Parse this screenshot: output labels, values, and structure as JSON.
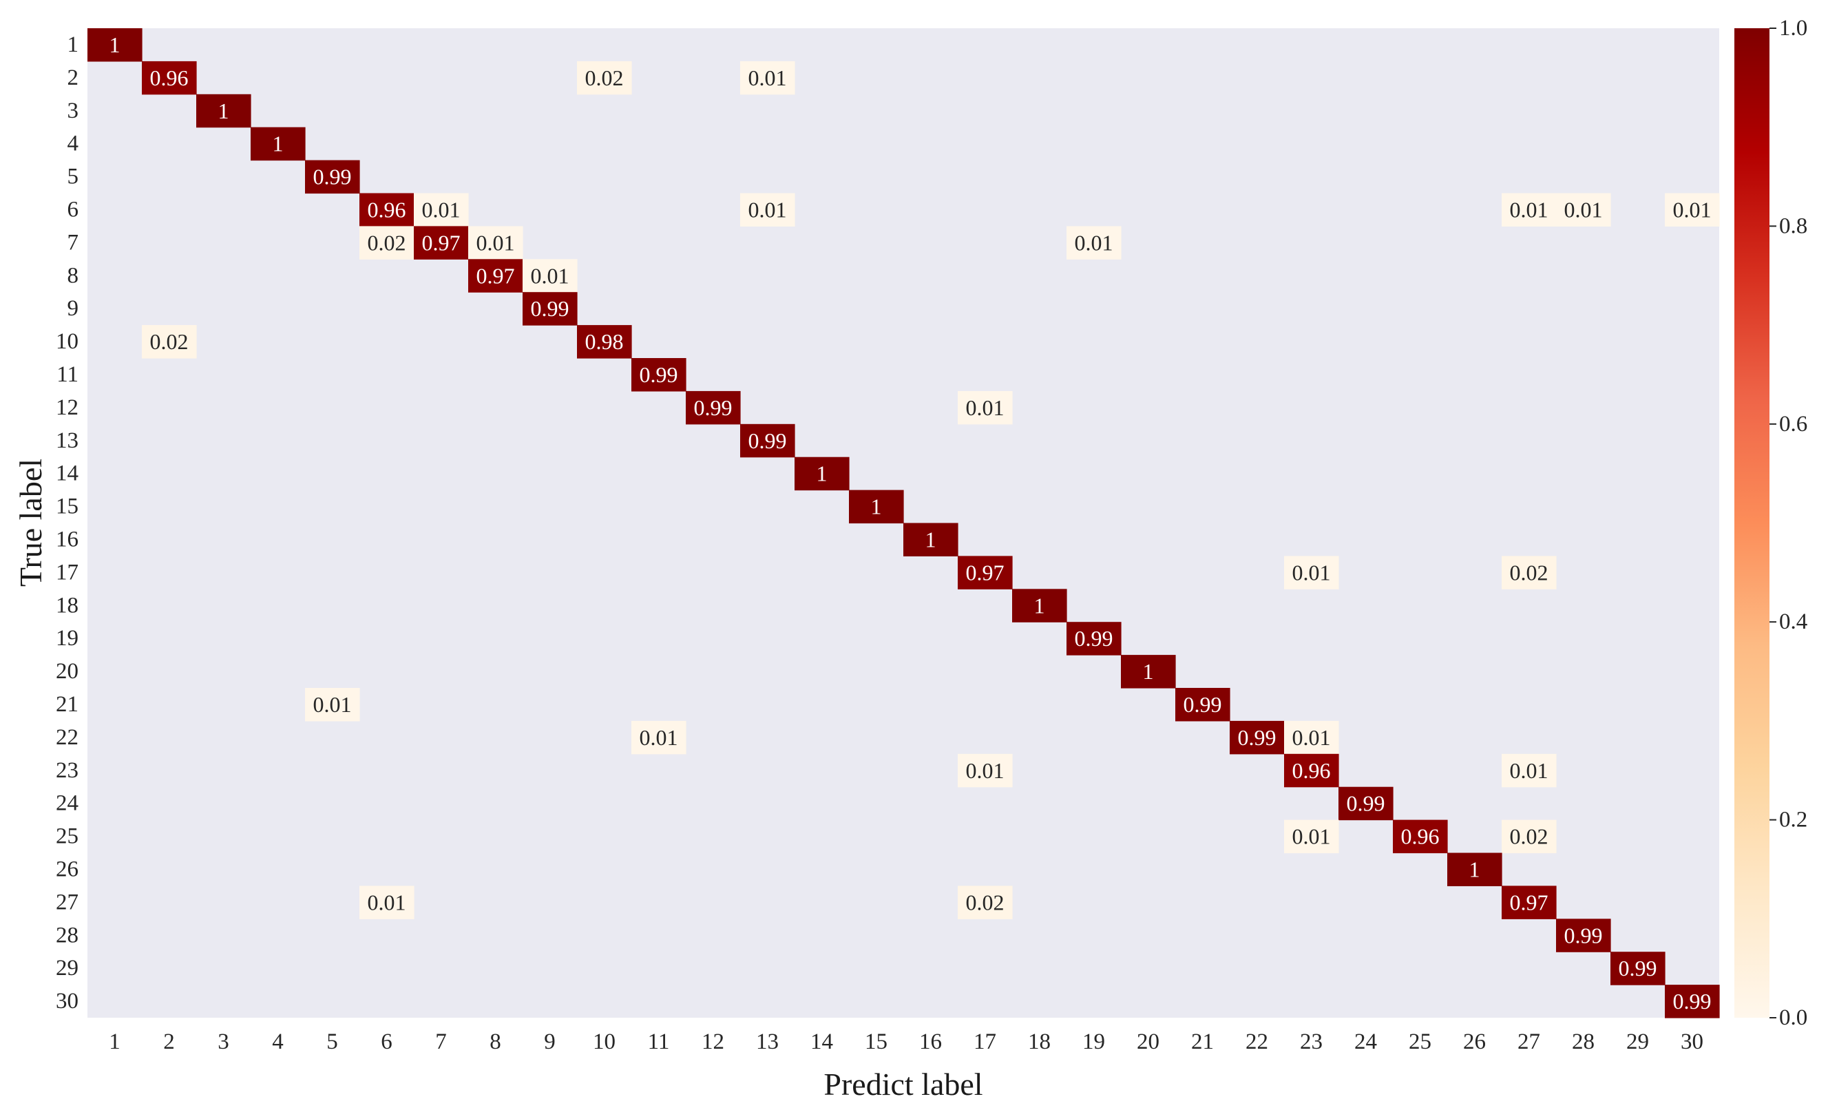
{
  "chart_data": {
    "type": "heatmap",
    "title": "",
    "xlabel": "Predict label",
    "ylabel": "True label",
    "x_categories": [
      "1",
      "2",
      "3",
      "4",
      "5",
      "6",
      "7",
      "8",
      "9",
      "10",
      "11",
      "12",
      "13",
      "14",
      "15",
      "16",
      "17",
      "18",
      "19",
      "20",
      "21",
      "22",
      "23",
      "24",
      "25",
      "26",
      "27",
      "28",
      "29",
      "30"
    ],
    "y_categories": [
      "1",
      "2",
      "3",
      "4",
      "5",
      "6",
      "7",
      "8",
      "9",
      "10",
      "11",
      "12",
      "13",
      "14",
      "15",
      "16",
      "17",
      "18",
      "19",
      "20",
      "21",
      "22",
      "23",
      "24",
      "25",
      "26",
      "27",
      "28",
      "29",
      "30"
    ],
    "cells": [
      {
        "row": 1,
        "col": 1,
        "value": 1,
        "label": "1"
      },
      {
        "row": 2,
        "col": 2,
        "value": 0.96,
        "label": "0.96"
      },
      {
        "row": 2,
        "col": 10,
        "value": 0.02,
        "label": "0.02"
      },
      {
        "row": 2,
        "col": 13,
        "value": 0.01,
        "label": "0.01"
      },
      {
        "row": 3,
        "col": 3,
        "value": 1,
        "label": "1"
      },
      {
        "row": 4,
        "col": 4,
        "value": 1,
        "label": "1"
      },
      {
        "row": 5,
        "col": 5,
        "value": 0.99,
        "label": "0.99"
      },
      {
        "row": 6,
        "col": 6,
        "value": 0.96,
        "label": "0.96"
      },
      {
        "row": 6,
        "col": 7,
        "value": 0.01,
        "label": "0.01"
      },
      {
        "row": 6,
        "col": 13,
        "value": 0.01,
        "label": "0.01"
      },
      {
        "row": 6,
        "col": 27,
        "value": 0.01,
        "label": "0.01"
      },
      {
        "row": 6,
        "col": 28,
        "value": 0.01,
        "label": "0.01"
      },
      {
        "row": 6,
        "col": 30,
        "value": 0.01,
        "label": "0.01"
      },
      {
        "row": 7,
        "col": 6,
        "value": 0.02,
        "label": "0.02"
      },
      {
        "row": 7,
        "col": 7,
        "value": 0.97,
        "label": "0.97"
      },
      {
        "row": 7,
        "col": 8,
        "value": 0.01,
        "label": "0.01"
      },
      {
        "row": 7,
        "col": 19,
        "value": 0.01,
        "label": "0.01"
      },
      {
        "row": 8,
        "col": 8,
        "value": 0.97,
        "label": "0.97"
      },
      {
        "row": 8,
        "col": 9,
        "value": 0.01,
        "label": "0.01"
      },
      {
        "row": 9,
        "col": 9,
        "value": 0.99,
        "label": "0.99"
      },
      {
        "row": 10,
        "col": 2,
        "value": 0.02,
        "label": "0.02"
      },
      {
        "row": 10,
        "col": 10,
        "value": 0.98,
        "label": "0.98"
      },
      {
        "row": 11,
        "col": 11,
        "value": 0.99,
        "label": "0.99"
      },
      {
        "row": 12,
        "col": 12,
        "value": 0.99,
        "label": "0.99"
      },
      {
        "row": 12,
        "col": 17,
        "value": 0.01,
        "label": "0.01"
      },
      {
        "row": 13,
        "col": 13,
        "value": 0.99,
        "label": "0.99"
      },
      {
        "row": 14,
        "col": 14,
        "value": 1,
        "label": "1"
      },
      {
        "row": 15,
        "col": 15,
        "value": 1,
        "label": "1"
      },
      {
        "row": 16,
        "col": 16,
        "value": 1,
        "label": "1"
      },
      {
        "row": 17,
        "col": 17,
        "value": 0.97,
        "label": "0.97"
      },
      {
        "row": 17,
        "col": 23,
        "value": 0.01,
        "label": "0.01"
      },
      {
        "row": 17,
        "col": 27,
        "value": 0.02,
        "label": "0.02"
      },
      {
        "row": 18,
        "col": 18,
        "value": 1,
        "label": "1"
      },
      {
        "row": 19,
        "col": 19,
        "value": 0.99,
        "label": "0.99"
      },
      {
        "row": 20,
        "col": 20,
        "value": 1,
        "label": "1"
      },
      {
        "row": 21,
        "col": 5,
        "value": 0.01,
        "label": "0.01"
      },
      {
        "row": 21,
        "col": 21,
        "value": 0.99,
        "label": "0.99"
      },
      {
        "row": 22,
        "col": 11,
        "value": 0.01,
        "label": "0.01"
      },
      {
        "row": 22,
        "col": 22,
        "value": 0.99,
        "label": "0.99"
      },
      {
        "row": 22,
        "col": 23,
        "value": 0.01,
        "label": "0.01"
      },
      {
        "row": 23,
        "col": 17,
        "value": 0.01,
        "label": "0.01"
      },
      {
        "row": 23,
        "col": 23,
        "value": 0.96,
        "label": "0.96"
      },
      {
        "row": 23,
        "col": 27,
        "value": 0.01,
        "label": "0.01"
      },
      {
        "row": 24,
        "col": 24,
        "value": 0.99,
        "label": "0.99"
      },
      {
        "row": 25,
        "col": 23,
        "value": 0.01,
        "label": "0.01"
      },
      {
        "row": 25,
        "col": 25,
        "value": 0.96,
        "label": "0.96"
      },
      {
        "row": 25,
        "col": 27,
        "value": 0.02,
        "label": "0.02"
      },
      {
        "row": 26,
        "col": 26,
        "value": 1,
        "label": "1"
      },
      {
        "row": 27,
        "col": 6,
        "value": 0.01,
        "label": "0.01"
      },
      {
        "row": 27,
        "col": 17,
        "value": 0.02,
        "label": "0.02"
      },
      {
        "row": 27,
        "col": 27,
        "value": 0.97,
        "label": "0.97"
      },
      {
        "row": 28,
        "col": 28,
        "value": 0.99,
        "label": "0.99"
      },
      {
        "row": 29,
        "col": 29,
        "value": 0.99,
        "label": "0.99"
      },
      {
        "row": 30,
        "col": 30,
        "value": 0.99,
        "label": "0.99"
      }
    ],
    "colorbar": {
      "range": [
        0.0,
        1.0
      ],
      "ticks": [
        0.0,
        0.2,
        0.4,
        0.6,
        0.8,
        1.0
      ],
      "tick_labels": [
        "0.0",
        "0.2",
        "0.4",
        "0.6",
        "0.8",
        "1.0"
      ],
      "colormap": "OrRd"
    },
    "grid": false,
    "colors": {
      "background": "#eaeaf2",
      "high": "#7f0000",
      "low": "#fff7ec",
      "text_on_dark": "#ffffff",
      "text_on_light": "#262626"
    }
  }
}
